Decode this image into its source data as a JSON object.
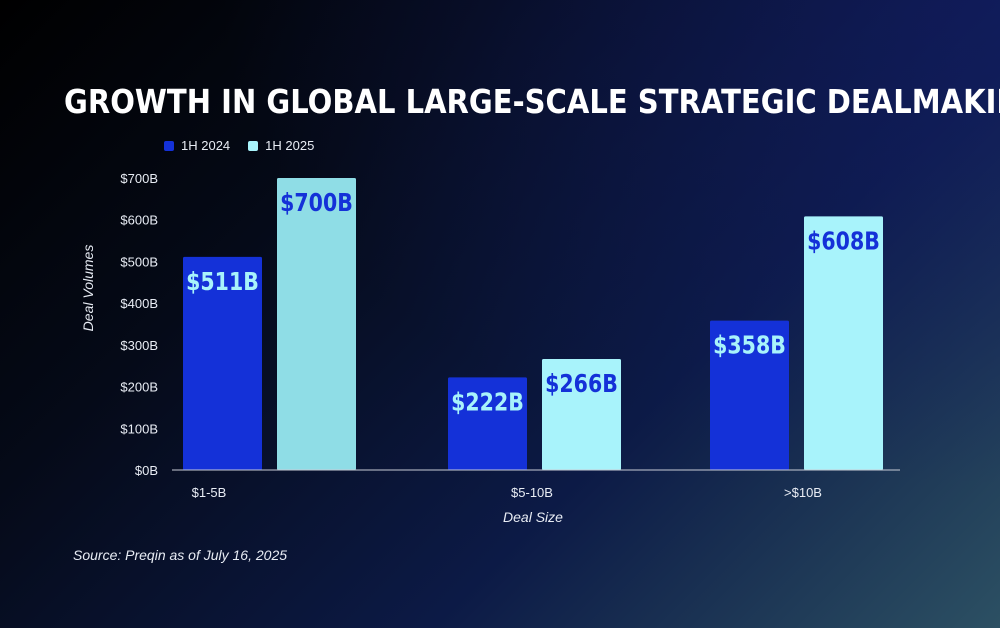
{
  "title": "GROWTH IN GLOBAL LARGE-SCALE STRATEGIC DEALMAKING",
  "source": "Source: Preqin as of July 16, 2025",
  "colors": {
    "series_1h2024": "#1431d8",
    "series_1h2025_first": "#8fdde6",
    "series_1h2025": "#a8f3fb",
    "label_on_2024": "#a8f3fb",
    "label_on_2025": "#1431d8"
  },
  "chart_data": {
    "type": "bar",
    "categories": [
      "$1-5B",
      "$5-10B",
      ">$10B"
    ],
    "series": [
      {
        "name": "1H 2024",
        "values": [
          511,
          222,
          358
        ],
        "labels": [
          "$511B",
          "$222B",
          "$358B"
        ]
      },
      {
        "name": "1H 2025",
        "values": [
          700,
          266,
          608
        ],
        "labels": [
          "$700B",
          "$266B",
          "$608B"
        ]
      }
    ],
    "xlabel": "Deal Size",
    "ylabel": "Deal Volumes",
    "ylim": [
      0,
      700
    ],
    "yticks": [
      "$0B",
      "$100B",
      "$200B",
      "$300B",
      "$400B",
      "$500B",
      "$600B",
      "$700B"
    ],
    "ytick_values": [
      0,
      100,
      200,
      300,
      400,
      500,
      600,
      700
    ],
    "legend_position": "top-left",
    "grid": false
  }
}
